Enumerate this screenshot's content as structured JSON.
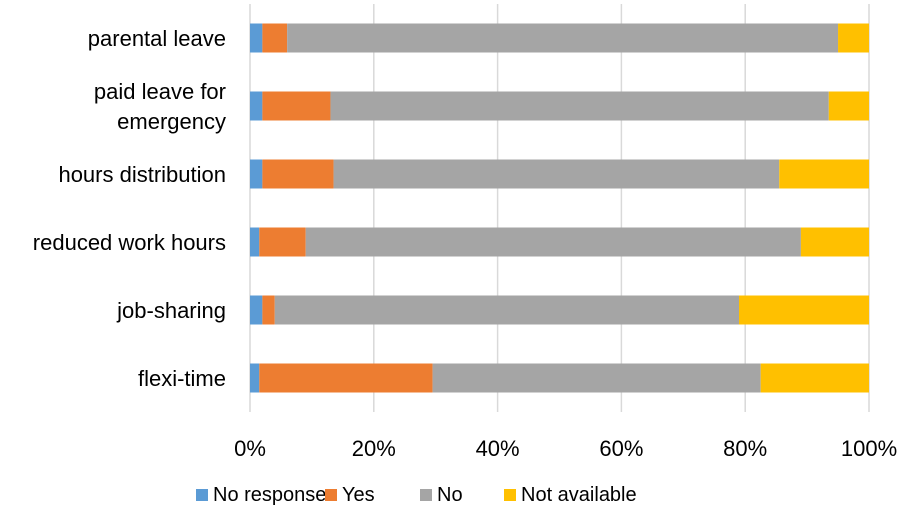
{
  "chart_data": {
    "type": "bar",
    "orientation": "horizontal",
    "stacked": "percent",
    "categories": [
      "parental leave",
      "paid leave for emergency",
      "hours distribution",
      "reduced work hours",
      "job-sharing",
      "flexi-time"
    ],
    "category_lines": [
      [
        "parental leave"
      ],
      [
        "paid leave for",
        "emergency"
      ],
      [
        "hours distribution"
      ],
      [
        "reduced work hours"
      ],
      [
        "job-sharing"
      ],
      [
        "flexi-time"
      ]
    ],
    "series": [
      {
        "name": "No response",
        "color": "#5B9BD5",
        "values": [
          2,
          2,
          2,
          1.5,
          2,
          1.5
        ]
      },
      {
        "name": "Yes",
        "color": "#ED7D31",
        "values": [
          4,
          11,
          11.5,
          7.5,
          2,
          28
        ]
      },
      {
        "name": "No",
        "color": "#A5A5A5",
        "values": [
          89,
          80.5,
          72,
          80,
          75,
          53
        ]
      },
      {
        "name": "Not available",
        "color": "#FFC000",
        "values": [
          5,
          6.5,
          14.5,
          11,
          21,
          17.5
        ]
      }
    ],
    "xlim": [
      0,
      100
    ],
    "xticks": [
      "0%",
      "20%",
      "40%",
      "60%",
      "80%",
      "100%"
    ],
    "grid": true,
    "legend_position": "bottom"
  }
}
